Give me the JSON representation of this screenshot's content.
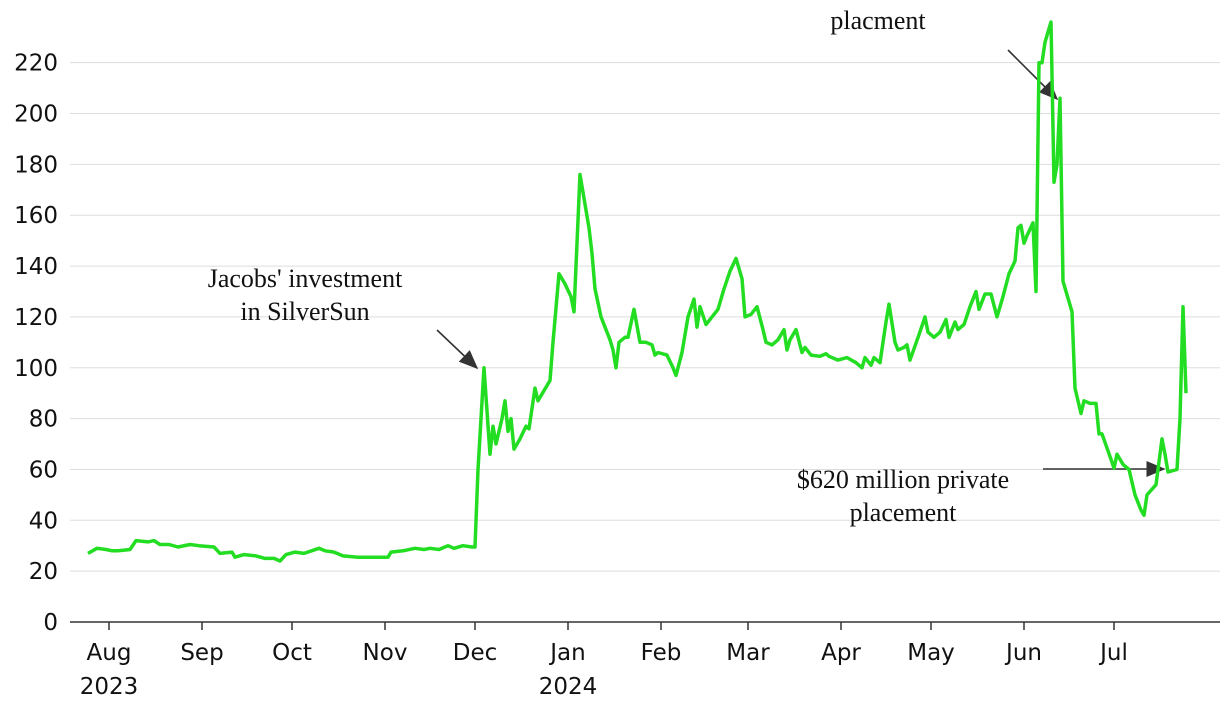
{
  "chart_data": {
    "type": "line",
    "color": "#22dd22",
    "grid": true,
    "x": [
      24,
      27,
      30,
      32,
      34,
      38,
      40,
      44,
      46,
      48,
      51,
      54,
      58,
      61,
      66,
      68,
      72,
      73,
      76,
      80,
      83,
      86,
      88,
      90,
      93,
      96,
      101,
      103,
      106,
      109,
      114,
      118,
      124,
      125,
      129,
      133,
      136,
      138,
      141,
      144,
      146,
      149,
      152,
      153,
      154,
      156,
      158,
      159,
      160,
      162,
      163,
      164,
      165,
      166,
      168,
      170,
      171,
      173,
      174,
      176,
      178,
      179,
      181,
      183,
      185,
      186,
      188,
      191,
      192,
      193,
      195,
      198,
      199,
      200,
      201,
      203,
      204,
      206,
      208,
      210,
      212,
      213,
      214,
      217,
      219,
      220,
      222,
      224,
      226,
      227,
      228,
      230,
      232,
      234,
      236,
      238,
      240,
      242,
      243,
      245,
      247,
      249,
      250,
      252,
      254,
      256,
      257,
      258,
      260,
      262,
      263,
      265,
      268,
      270,
      271,
      274,
      277,
      280,
      282,
      283,
      285,
      286,
      288,
      289,
      290,
      291,
      293,
      294,
      296,
      297,
      298,
      301,
      303,
      304,
      306,
      308,
      310,
      311,
      313,
      314,
      316,
      318,
      320,
      321,
      323,
      325,
      327,
      329,
      331,
      333,
      334,
      335,
      336,
      337,
      339,
      340,
      341,
      342,
      343,
      345,
      346,
      347,
      348,
      349,
      352,
      353,
      355,
      356,
      358,
      360,
      361,
      362,
      365,
      366,
      367,
      369,
      371,
      373,
      375,
      376,
      377,
      380,
      382,
      383,
      384,
      387,
      388,
      389,
      390
    ],
    "values": [
      27,
      29,
      28.5,
      28,
      28,
      28.5,
      32,
      31.5,
      32,
      30.5,
      30.5,
      29.5,
      30.5,
      30,
      29.5,
      27,
      27.5,
      25.5,
      26.5,
      26,
      25,
      25,
      24,
      26.5,
      27.5,
      27,
      29,
      28,
      27.5,
      26,
      25.5,
      25.5,
      25.5,
      27.5,
      28,
      29,
      28.5,
      29,
      28.5,
      30,
      29,
      30,
      29.5,
      29.5,
      60,
      100,
      66,
      77,
      70,
      80,
      87,
      75,
      80,
      68,
      72,
      77,
      76,
      92,
      87,
      91,
      95,
      110,
      137,
      133,
      128,
      122,
      176,
      155,
      145,
      131,
      120,
      111,
      107,
      100,
      110,
      112,
      112,
      123,
      110,
      110,
      109,
      105,
      106,
      105,
      100,
      97,
      106,
      120,
      127,
      116,
      124,
      117,
      120,
      123,
      131,
      138,
      143,
      135,
      120,
      121,
      124,
      115,
      110,
      109,
      111,
      115,
      107,
      111,
      115,
      106,
      108,
      105,
      104.5,
      105.5,
      104.5,
      103,
      104,
      102,
      100,
      104,
      101,
      104,
      102,
      110,
      118,
      125,
      110,
      107,
      108,
      109,
      103,
      113,
      120,
      114,
      112,
      114,
      119,
      112,
      118,
      115,
      117,
      124,
      130,
      123,
      129,
      129,
      120,
      128,
      137,
      142,
      155,
      156,
      149,
      152,
      157,
      130,
      220,
      220,
      228,
      236,
      173,
      180,
      206,
      134,
      122,
      92,
      82,
      87,
      86,
      86,
      74,
      74,
      64,
      60.5,
      66,
      62,
      60,
      50,
      44,
      42,
      50,
      54,
      72,
      66,
      59,
      60,
      80,
      124,
      90
    ],
    "xlim": [
      18,
      394
    ],
    "xticks": [
      {
        "value": 31,
        "label": [
          "Aug",
          "2023"
        ]
      },
      {
        "value": 62,
        "label": [
          "Sep"
        ]
      },
      {
        "value": 92,
        "label": [
          "Oct"
        ]
      },
      {
        "value": 123,
        "label": [
          "Nov"
        ]
      },
      {
        "value": 153,
        "label": [
          "Dec"
        ]
      },
      {
        "value": 184,
        "label": [
          "Jan",
          "2024"
        ]
      },
      {
        "value": 215,
        "label": [
          "Feb"
        ]
      },
      {
        "value": 244,
        "label": [
          "Mar"
        ]
      },
      {
        "value": 275,
        "label": [
          "Apr"
        ]
      },
      {
        "value": 305,
        "label": [
          "May"
        ]
      },
      {
        "value": 336,
        "label": [
          "Jun"
        ]
      },
      {
        "value": 366,
        "label": [
          "Jul"
        ]
      }
    ],
    "ylim": [
      0,
      236
    ],
    "yticks": [
      0,
      20,
      40,
      60,
      80,
      100,
      120,
      140,
      160,
      180,
      200,
      220
    ],
    "annotations": [
      {
        "lines": [
          "Jacobs' investment",
          "in SilverSun"
        ]
      },
      {
        "lines": [
          "placment"
        ]
      },
      {
        "lines": [
          "$620 million private",
          "placement"
        ]
      }
    ]
  }
}
